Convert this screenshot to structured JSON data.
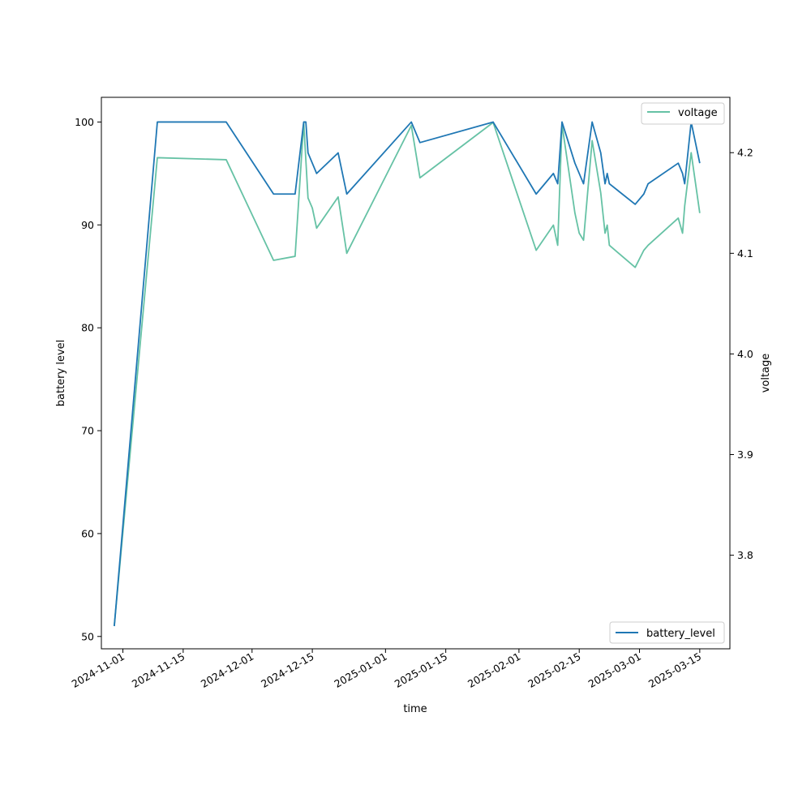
{
  "chart_data": {
    "type": "line",
    "xlabel": "time",
    "ylabel": "battery level",
    "y2label": "voltage",
    "xlim": [
      "2024-10-27",
      "2025-03-22"
    ],
    "ylim": [
      48.8,
      102.4
    ],
    "y2lim": [
      3.707,
      4.255
    ],
    "x_ticks": [
      "2024-11-01",
      "2024-11-15",
      "2024-12-01",
      "2024-12-15",
      "2025-01-01",
      "2025-01-15",
      "2025-02-01",
      "2025-02-15",
      "2025-03-01",
      "2025-03-15"
    ],
    "y_ticks": [
      50,
      60,
      70,
      80,
      90,
      100
    ],
    "y2_ticks": [
      "3.8",
      "3.9",
      "4.0",
      "4.1",
      "4.2"
    ],
    "series": [
      {
        "name": "battery_level",
        "axis": "left",
        "color": "#1f77b4",
        "points": [
          [
            "2024-10-30",
            51
          ],
          [
            "2024-11-09",
            100
          ],
          [
            "2024-11-25",
            100
          ],
          [
            "2024-12-06",
            93
          ],
          [
            "2024-12-11",
            93
          ],
          [
            "2024-12-13",
            100
          ],
          [
            "2024-12-13 12:00",
            100
          ],
          [
            "2024-12-14",
            97
          ],
          [
            "2024-12-15",
            96
          ],
          [
            "2024-12-16",
            95
          ],
          [
            "2024-12-21",
            97
          ],
          [
            "2024-12-23",
            93
          ],
          [
            "2025-01-07",
            100
          ],
          [
            "2025-01-09",
            98
          ],
          [
            "2025-01-26",
            100
          ],
          [
            "2025-02-05",
            93
          ],
          [
            "2025-02-09",
            95
          ],
          [
            "2025-02-10",
            94
          ],
          [
            "2025-02-11",
            100
          ],
          [
            "2025-02-14",
            96
          ],
          [
            "2025-02-16",
            94
          ],
          [
            "2025-02-18",
            100
          ],
          [
            "2025-02-20",
            97
          ],
          [
            "2025-02-21",
            94
          ],
          [
            "2025-02-21 12:00",
            95
          ],
          [
            "2025-02-22",
            94
          ],
          [
            "2025-02-28",
            92
          ],
          [
            "2025-03-02",
            93
          ],
          [
            "2025-03-03",
            94
          ],
          [
            "2025-03-10",
            96
          ],
          [
            "2025-03-11",
            95
          ],
          [
            "2025-03-11 12:00",
            94
          ],
          [
            "2025-03-12",
            96
          ],
          [
            "2025-03-13",
            100
          ],
          [
            "2025-03-15",
            96
          ]
        ]
      },
      {
        "name": "voltage",
        "axis": "right",
        "color": "#66c2a5",
        "points": [
          [
            "2024-10-30",
            3.73
          ],
          [
            "2024-11-09",
            4.195
          ],
          [
            "2024-11-25",
            4.193
          ],
          [
            "2024-12-06",
            4.093
          ],
          [
            "2024-12-11",
            4.097
          ],
          [
            "2024-12-13",
            4.23
          ],
          [
            "2024-12-14",
            4.155
          ],
          [
            "2024-12-15",
            4.145
          ],
          [
            "2024-12-16",
            4.125
          ],
          [
            "2024-12-21",
            4.156
          ],
          [
            "2024-12-23",
            4.1
          ],
          [
            "2025-01-07",
            4.227
          ],
          [
            "2025-01-09",
            4.175
          ],
          [
            "2025-01-26",
            4.23
          ],
          [
            "2025-02-05",
            4.103
          ],
          [
            "2025-02-09",
            4.128
          ],
          [
            "2025-02-10",
            4.108
          ],
          [
            "2025-02-11",
            4.228
          ],
          [
            "2025-02-14",
            4.14
          ],
          [
            "2025-02-15",
            4.12
          ],
          [
            "2025-02-16",
            4.113
          ],
          [
            "2025-02-18",
            4.212
          ],
          [
            "2025-02-20",
            4.16
          ],
          [
            "2025-02-21",
            4.12
          ],
          [
            "2025-02-21 12:00",
            4.128
          ],
          [
            "2025-02-22",
            4.108
          ],
          [
            "2025-02-28",
            4.086
          ],
          [
            "2025-03-02",
            4.103
          ],
          [
            "2025-03-03",
            4.108
          ],
          [
            "2025-03-10",
            4.135
          ],
          [
            "2025-03-11",
            4.12
          ],
          [
            "2025-03-11 12:00",
            4.147
          ],
          [
            "2025-03-13",
            4.2
          ],
          [
            "2025-03-15",
            4.14
          ]
        ]
      }
    ],
    "legend_positions": {
      "battery_level": "bottom-right",
      "voltage": "top-right"
    },
    "grid": false
  }
}
